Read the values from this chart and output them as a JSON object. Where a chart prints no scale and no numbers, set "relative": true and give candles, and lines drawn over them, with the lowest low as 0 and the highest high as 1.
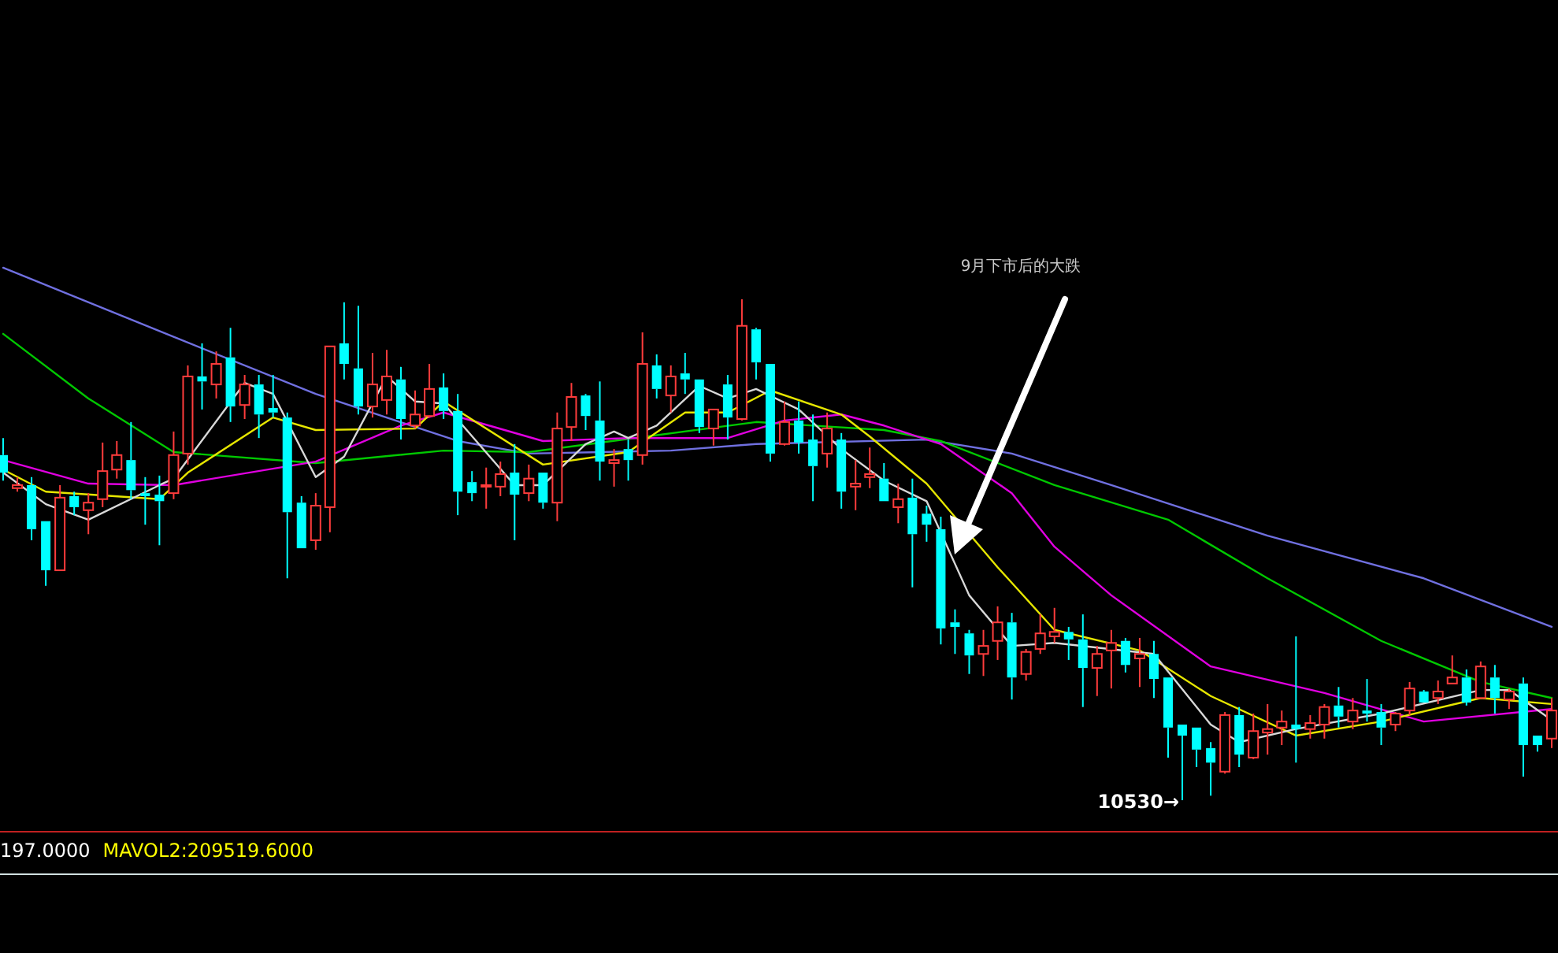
{
  "chart_data": {
    "type": "candlestick",
    "relative": true,
    "categories": [
      null,
      null,
      null,
      null,
      null,
      null,
      null,
      null,
      null,
      null,
      null,
      null,
      null,
      null,
      null,
      null,
      null,
      null,
      null,
      null,
      null,
      null,
      null,
      null,
      null,
      null,
      null,
      null,
      null,
      null,
      null,
      null,
      null,
      null,
      null,
      null,
      null,
      null,
      null,
      null,
      null,
      null,
      null,
      null,
      null,
      null,
      null,
      null,
      null,
      null,
      null,
      null,
      null,
      null,
      null,
      null,
      null,
      null,
      null,
      null,
      null,
      null,
      null,
      null,
      null,
      null,
      null,
      null,
      null,
      null,
      null,
      null,
      null,
      null,
      null,
      null,
      null,
      null,
      null,
      null,
      null,
      null,
      null,
      null,
      null,
      null,
      null,
      null,
      null,
      null,
      null,
      null,
      null,
      null,
      null,
      null,
      null,
      null,
      null,
      null,
      null,
      null,
      null,
      null,
      null,
      null,
      null,
      null,
      null,
      null
    ],
    "ohlc": [
      [
        0.689,
        0.723,
        0.638,
        0.654
      ],
      [
        0.623,
        0.645,
        0.616,
        0.629
      ],
      [
        0.629,
        0.645,
        0.519,
        0.541
      ],
      [
        0.557,
        0.557,
        0.428,
        0.459
      ],
      [
        0.459,
        0.629,
        0.459,
        0.604
      ],
      [
        0.607,
        0.616,
        0.569,
        0.585
      ],
      [
        0.579,
        0.613,
        0.531,
        0.594
      ],
      [
        0.601,
        0.714,
        0.585,
        0.657
      ],
      [
        0.66,
        0.717,
        0.642,
        0.689
      ],
      [
        0.679,
        0.755,
        0.601,
        0.619
      ],
      [
        0.613,
        0.645,
        0.55,
        0.607
      ],
      [
        0.61,
        0.648,
        0.509,
        0.597
      ],
      [
        0.613,
        0.736,
        0.601,
        0.689
      ],
      [
        0.692,
        0.868,
        0.67,
        0.846
      ],
      [
        0.846,
        0.912,
        0.78,
        0.836
      ],
      [
        0.83,
        0.896,
        0.802,
        0.871
      ],
      [
        0.884,
        0.943,
        0.755,
        0.786
      ],
      [
        0.789,
        0.849,
        0.761,
        0.83
      ],
      [
        0.83,
        0.849,
        0.723,
        0.77
      ],
      [
        0.783,
        0.849,
        0.764,
        0.774
      ],
      [
        0.764,
        0.774,
        0.443,
        0.575
      ],
      [
        0.594,
        0.607,
        0.503,
        0.503
      ],
      [
        0.519,
        0.613,
        0.5,
        0.588
      ],
      [
        0.585,
        0.906,
        0.535,
        0.906
      ],
      [
        0.912,
        0.994,
        0.84,
        0.871
      ],
      [
        0.862,
        0.987,
        0.77,
        0.786
      ],
      [
        0.786,
        0.893,
        0.764,
        0.83
      ],
      [
        0.799,
        0.899,
        0.77,
        0.846
      ],
      [
        0.84,
        0.865,
        0.72,
        0.761
      ],
      [
        0.748,
        0.818,
        0.742,
        0.77
      ],
      [
        0.767,
        0.871,
        0.764,
        0.821
      ],
      [
        0.824,
        0.852,
        0.761,
        0.777
      ],
      [
        0.777,
        0.811,
        0.569,
        0.616
      ],
      [
        0.635,
        0.657,
        0.597,
        0.613
      ],
      [
        0.626,
        0.664,
        0.582,
        0.629
      ],
      [
        0.626,
        0.676,
        0.607,
        0.651
      ],
      [
        0.654,
        0.711,
        0.519,
        0.61
      ],
      [
        0.613,
        0.67,
        0.597,
        0.642
      ],
      [
        0.654,
        0.654,
        0.582,
        0.594
      ],
      [
        0.594,
        0.774,
        0.557,
        0.742
      ],
      [
        0.745,
        0.833,
        0.717,
        0.805
      ],
      [
        0.808,
        0.811,
        0.739,
        0.767
      ],
      [
        0.758,
        0.836,
        0.638,
        0.676
      ],
      [
        0.673,
        0.701,
        0.626,
        0.679
      ],
      [
        0.701,
        0.72,
        0.638,
        0.679
      ],
      [
        0.689,
        0.934,
        0.67,
        0.871
      ],
      [
        0.868,
        0.89,
        0.802,
        0.821
      ],
      [
        0.808,
        0.868,
        0.774,
        0.846
      ],
      [
        0.852,
        0.893,
        0.811,
        0.84
      ],
      [
        0.84,
        0.84,
        0.733,
        0.745
      ],
      [
        0.742,
        0.78,
        0.708,
        0.78
      ],
      [
        0.83,
        0.849,
        0.72,
        0.764
      ],
      [
        0.761,
        1,
        0.758,
        0.947
      ],
      [
        0.94,
        0.943,
        0.84,
        0.874
      ],
      [
        0.871,
        0.871,
        0.676,
        0.692
      ],
      [
        0.711,
        0.796,
        0.708,
        0.755
      ],
      [
        0.758,
        0.796,
        0.692,
        0.714
      ],
      [
        0.72,
        0.77,
        0.597,
        0.667
      ],
      [
        0.692,
        0.774,
        0.664,
        0.742
      ],
      [
        0.72,
        0.733,
        0.582,
        0.616
      ],
      [
        0.626,
        0.679,
        0.579,
        0.632
      ],
      [
        0.645,
        0.704,
        0.623,
        0.651
      ],
      [
        0.642,
        0.673,
        0.597,
        0.597
      ],
      [
        0.585,
        0.632,
        0.553,
        0.601
      ],
      [
        0.604,
        0.642,
        0.425,
        0.531
      ],
      [
        0.572,
        0.588,
        0.516,
        0.55
      ],
      [
        0.541,
        0.566,
        0.311,
        0.343
      ],
      [
        0.355,
        0.381,
        0.292,
        0.346
      ],
      [
        0.333,
        0.34,
        0.252,
        0.289
      ],
      [
        0.292,
        0.34,
        0.248,
        0.308
      ],
      [
        0.318,
        0.387,
        0.28,
        0.355
      ],
      [
        0.355,
        0.374,
        0.201,
        0.245
      ],
      [
        0.252,
        0.302,
        0.239,
        0.296
      ],
      [
        0.302,
        0.371,
        0.292,
        0.333
      ],
      [
        0.327,
        0.384,
        0.314,
        0.336
      ],
      [
        0.336,
        0.346,
        0.28,
        0.321
      ],
      [
        0.321,
        0.371,
        0.186,
        0.264
      ],
      [
        0.264,
        0.308,
        0.208,
        0.292
      ],
      [
        0.299,
        0.34,
        0.223,
        0.314
      ],
      [
        0.318,
        0.324,
        0.255,
        0.27
      ],
      [
        0.283,
        0.324,
        0.226,
        0.292
      ],
      [
        0.292,
        0.318,
        0.204,
        0.242
      ],
      [
        0.245,
        0.245,
        0.085,
        0.145
      ],
      [
        0.151,
        0.151,
        0,
        0.129
      ],
      [
        0.145,
        0.145,
        0.066,
        0.101
      ],
      [
        0.104,
        0.116,
        0.009,
        0.075
      ],
      [
        0.057,
        0.176,
        0.053,
        0.17
      ],
      [
        0.17,
        0.186,
        0.066,
        0.091
      ],
      [
        0.085,
        0.173,
        0.082,
        0.138
      ],
      [
        0.135,
        0.192,
        0.091,
        0.142
      ],
      [
        0.145,
        0.179,
        0.11,
        0.157
      ],
      [
        0.151,
        0.327,
        0.075,
        0.142
      ],
      [
        0.142,
        0.17,
        0.123,
        0.154
      ],
      [
        0.151,
        0.192,
        0.123,
        0.186
      ],
      [
        0.189,
        0.226,
        0.145,
        0.167
      ],
      [
        0.157,
        0.204,
        0.142,
        0.179
      ],
      [
        0.179,
        0.242,
        0.157,
        0.173
      ],
      [
        0.176,
        0.192,
        0.11,
        0.145
      ],
      [
        0.151,
        0.176,
        0.138,
        0.173
      ],
      [
        0.179,
        0.236,
        0.17,
        0.223
      ],
      [
        0.217,
        0.22,
        0.195,
        0.195
      ],
      [
        0.204,
        0.239,
        0.192,
        0.217
      ],
      [
        0.233,
        0.289,
        0.233,
        0.245
      ],
      [
        0.245,
        0.261,
        0.189,
        0.195
      ],
      [
        0.204,
        0.277,
        0.204,
        0.267
      ],
      [
        0.245,
        0.27,
        0.173,
        0.204
      ],
      [
        0.201,
        0.223,
        0.182,
        0.217
      ],
      [
        0.233,
        0.245,
        0.047,
        0.11
      ],
      [
        0.129,
        0.129,
        0.097,
        0.11
      ],
      [
        0.123,
        0.204,
        0.104,
        0.179
      ]
    ],
    "series": [
      {
        "type": "line",
        "color": "#7070e0",
        "values": [
          1.063,
          null,
          null,
          null,
          null,
          null,
          null,
          null,
          null,
          null,
          null,
          null,
          0.925,
          null,
          null,
          null,
          null,
          null,
          null,
          null,
          null,
          null,
          0.811,
          null,
          null,
          null,
          null,
          null,
          null,
          null,
          null,
          null,
          0.717,
          null,
          null,
          null,
          null,
          0.692,
          null,
          null,
          null,
          null,
          null,
          null,
          null,
          null,
          null,
          0.698,
          null,
          null,
          null,
          null,
          null,
          0.711,
          null,
          null,
          null,
          null,
          null,
          null,
          null,
          null,
          null,
          null,
          null,
          0.72,
          null,
          null,
          null,
          null,
          null,
          0.692,
          null,
          null,
          null,
          null,
          null,
          null,
          0.629,
          null,
          null,
          null,
          null,
          null,
          null,
          null,
          null,
          null,
          null,
          0.528,
          null,
          null,
          null,
          null,
          null,
          null,
          null,
          null,
          null,
          null,
          0.443,
          null,
          null,
          null,
          null,
          null,
          null,
          null,
          null,
          0.346
        ]
      },
      {
        "type": "line",
        "color": "#00c800",
        "values": [
          0.931,
          null,
          null,
          null,
          null,
          null,
          0.802,
          null,
          null,
          null,
          null,
          null,
          0.695,
          null,
          null,
          null,
          null,
          null,
          null,
          null,
          null,
          null,
          0.673,
          null,
          null,
          null,
          null,
          null,
          null,
          null,
          null,
          0.698,
          null,
          null,
          null,
          null,
          null,
          0.695,
          null,
          null,
          null,
          null,
          null,
          null,
          null,
          null,
          null,
          null,
          null,
          null,
          null,
          null,
          null,
          0.755,
          null,
          null,
          null,
          null,
          null,
          null,
          null,
          null,
          0.739,
          null,
          null,
          null,
          0.717,
          null,
          null,
          null,
          null,
          null,
          null,
          null,
          0.629,
          null,
          null,
          null,
          null,
          null,
          null,
          null,
          0.56,
          null,
          null,
          null,
          null,
          null,
          null,
          0.443,
          null,
          null,
          null,
          null,
          null,
          null,
          null,
          0.318,
          null,
          null,
          null,
          null,
          null,
          null,
          0.236,
          null,
          null,
          null,
          null,
          0.204
        ]
      },
      {
        "type": "line",
        "color": "#e000e0",
        "values": [
          0.679,
          null,
          null,
          null,
          null,
          null,
          0.632,
          null,
          null,
          null,
          null,
          null,
          0.629,
          null,
          null,
          null,
          null,
          null,
          null,
          null,
          null,
          null,
          0.676,
          null,
          null,
          null,
          null,
          null,
          0.748,
          null,
          null,
          0.774,
          null,
          null,
          null,
          null,
          null,
          null,
          0.717,
          null,
          null,
          null,
          null,
          null,
          0.723,
          null,
          null,
          null,
          null,
          null,
          null,
          0.723,
          null,
          null,
          null,
          0.758,
          null,
          null,
          null,
          0.77,
          null,
          null,
          0.748,
          null,
          null,
          null,
          0.711,
          null,
          null,
          null,
          null,
          0.613,
          null,
          null,
          0.506,
          null,
          null,
          null,
          0.409,
          null,
          null,
          null,
          null,
          null,
          null,
          0.267,
          null,
          null,
          null,
          null,
          null,
          null,
          null,
          0.214,
          null,
          null,
          null,
          null,
          null,
          null,
          0.157,
          null,
          null,
          null,
          null,
          null,
          null,
          null,
          null,
          0.182
        ]
      },
      {
        "type": "line",
        "color": "#e6e600",
        "values": [
          0.66,
          null,
          null,
          0.616,
          null,
          null,
          null,
          null,
          null,
          null,
          null,
          0.601,
          null,
          0.654,
          null,
          null,
          null,
          null,
          null,
          0.764,
          null,
          null,
          0.739,
          null,
          null,
          null,
          null,
          null,
          null,
          0.742,
          null,
          0.796,
          null,
          null,
          null,
          null,
          null,
          null,
          0.67,
          null,
          null,
          null,
          null,
          null,
          0.695,
          null,
          null,
          null,
          0.774,
          null,
          null,
          0.774,
          null,
          null,
          0.818,
          null,
          null,
          null,
          null,
          0.77,
          null,
          0.726,
          null,
          null,
          null,
          0.632,
          null,
          null,
          null,
          null,
          0.465,
          0.434,
          null,
          null,
          0.34,
          null,
          null,
          null,
          null,
          null,
          0.299,
          null,
          null,
          null,
          null,
          0.208,
          null,
          null,
          null,
          null,
          null,
          0.129,
          null,
          null,
          null,
          null,
          null,
          0.157,
          null,
          null,
          null,
          null,
          null,
          null,
          0.204,
          null,
          null,
          null,
          null,
          0.192
        ]
      },
      {
        "type": "line",
        "color": "#d8d8d8",
        "values": [
          0.654,
          null,
          null,
          0.591,
          null,
          null,
          0.56,
          null,
          null,
          null,
          null,
          0.629,
          0.642,
          null,
          null,
          null,
          null,
          0.833,
          null,
          0.811,
          null,
          null,
          0.645,
          null,
          0.686,
          null,
          null,
          0.846,
          null,
          0.796,
          null,
          0.792,
          null,
          null,
          null,
          null,
          0.629,
          null,
          0.629,
          null,
          null,
          0.711,
          null,
          0.736,
          0.723,
          null,
          0.748,
          null,
          null,
          0.827,
          null,
          0.802,
          null,
          0.821,
          null,
          null,
          0.78,
          null,
          null,
          0.701,
          null,
          null,
          0.638,
          null,
          null,
          0.597,
          null,
          null,
          0.409,
          null,
          null,
          0.308,
          null,
          null,
          0.314,
          null,
          null,
          null,
          null,
          null,
          null,
          0.292,
          null,
          null,
          null,
          0.151,
          null,
          0.116,
          null,
          null,
          null,
          0.142,
          null,
          null,
          null,
          null,
          null,
          0.173,
          null,
          null,
          null,
          null,
          null,
          null,
          0.22,
          null,
          0.22,
          null,
          null,
          0.16
        ]
      }
    ],
    "annotations": [
      "9月下市后的大跌",
      "10530→",
      "197.0000",
      "MAVOL2:209519.6000"
    ]
  }
}
